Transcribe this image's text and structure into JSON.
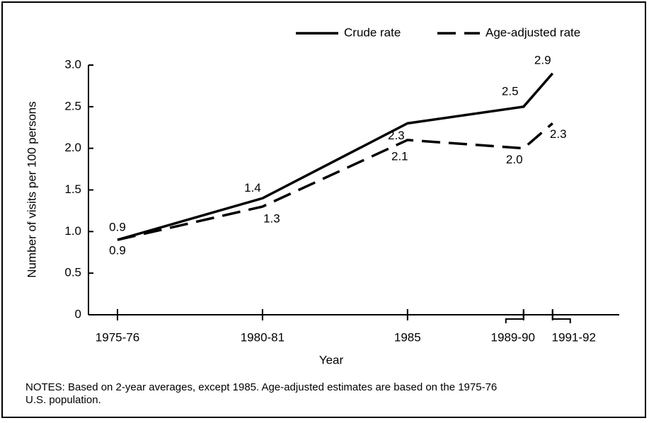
{
  "chart_data": {
    "type": "line",
    "x": [
      1976,
      1981,
      1986,
      1990,
      1991
    ],
    "xlim": [
      1975,
      1993.3
    ],
    "xticks": [
      {
        "value": 1976,
        "label": "1975-76"
      },
      {
        "value": 1981,
        "label": "1980-81"
      },
      {
        "value": 1986,
        "label": "1985"
      },
      {
        "value": 1990,
        "label": "1989-90"
      },
      {
        "value": 1991,
        "label": "1991-92"
      }
    ],
    "xlabel": "Year",
    "ylabel": "Number of visits per 100 persons",
    "ylim": [
      0,
      3.0
    ],
    "yticks": [
      {
        "value": 0,
        "label": "0"
      },
      0.5,
      {
        "value": 1.0,
        "label": "1.0"
      },
      1.5,
      {
        "value": 2.0,
        "label": "2.0"
      },
      2.5,
      {
        "value": 3.0,
        "label": "3.0"
      }
    ],
    "series": [
      {
        "name": "Crude rate",
        "color": "#000000",
        "dash": false,
        "values": [
          0.9,
          1.4,
          2.3,
          2.5,
          2.9
        ]
      },
      {
        "name": "Age-adjusted rate",
        "color": "#000000",
        "dash": true,
        "values": [
          0.9,
          1.3,
          2.1,
          2.0,
          2.3
        ],
        "value_labels": [
          "0.9",
          "1.3",
          "2.1",
          "2.0",
          "2.3"
        ]
      }
    ],
    "legend": "top-right",
    "notes": [
      "NOTES: Based on 2-year averages, except 1985. Age-adjusted estimates are based on the 1975-76",
      "U.S. population."
    ]
  }
}
